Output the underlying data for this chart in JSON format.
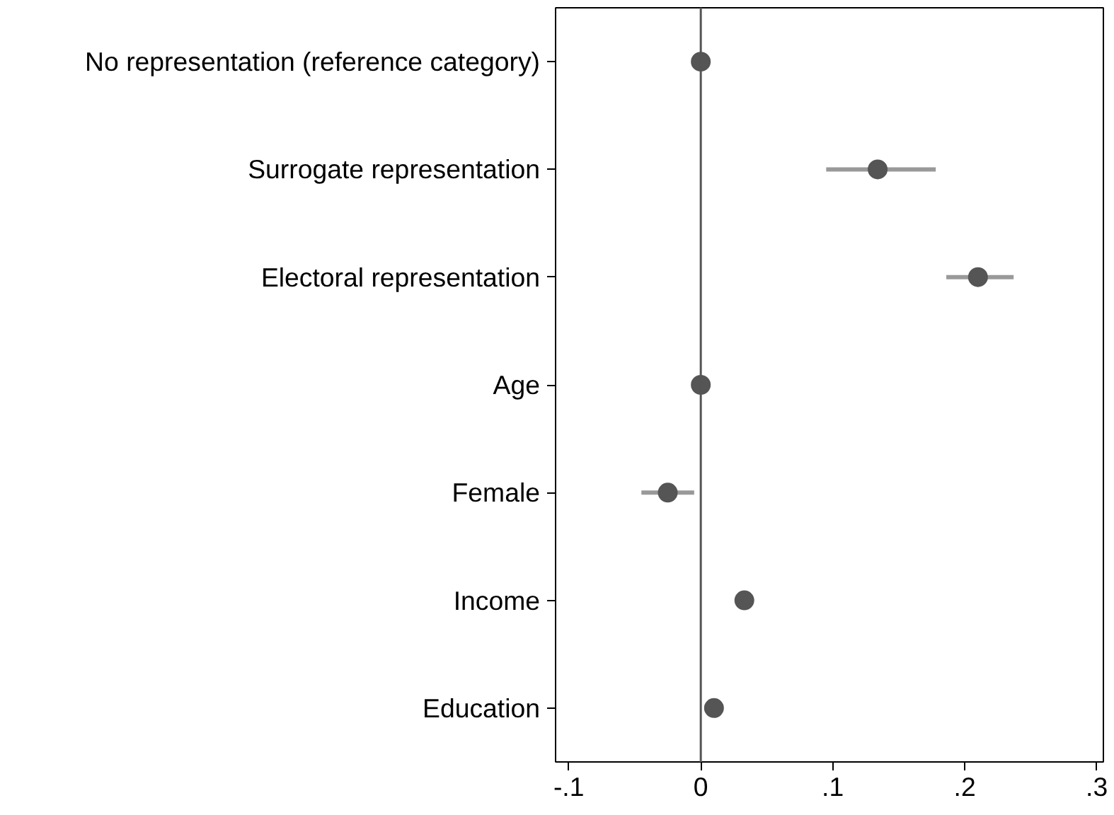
{
  "chart_data": {
    "type": "scatter",
    "orientation": "horizontal",
    "categories": [
      "No representation (reference category)",
      "Surrogate representation",
      "Electoral representation",
      "Age",
      "Female",
      "Income",
      "Education"
    ],
    "values": [
      0,
      0.134,
      0.21,
      0,
      -0.025,
      0.033,
      0.01
    ],
    "errors": [
      null,
      [
        0.095,
        0.178
      ],
      [
        0.186,
        0.237
      ],
      null,
      [
        -0.045,
        -0.005
      ],
      null,
      null
    ],
    "color": "#555555",
    "marker": "circle",
    "grid": false,
    "xlim": [
      -0.11,
      0.305
    ],
    "xticks": [
      {
        "value": -0.1,
        "label": "-.1"
      },
      0,
      {
        "value": 0.1,
        "label": ".1"
      },
      {
        "value": 0.2,
        "label": ".2"
      },
      {
        "value": 0.3,
        "label": ".3"
      }
    ],
    "ref_lines": [
      {
        "axis": "x",
        "value": 0,
        "color": "#555555"
      }
    ]
  }
}
